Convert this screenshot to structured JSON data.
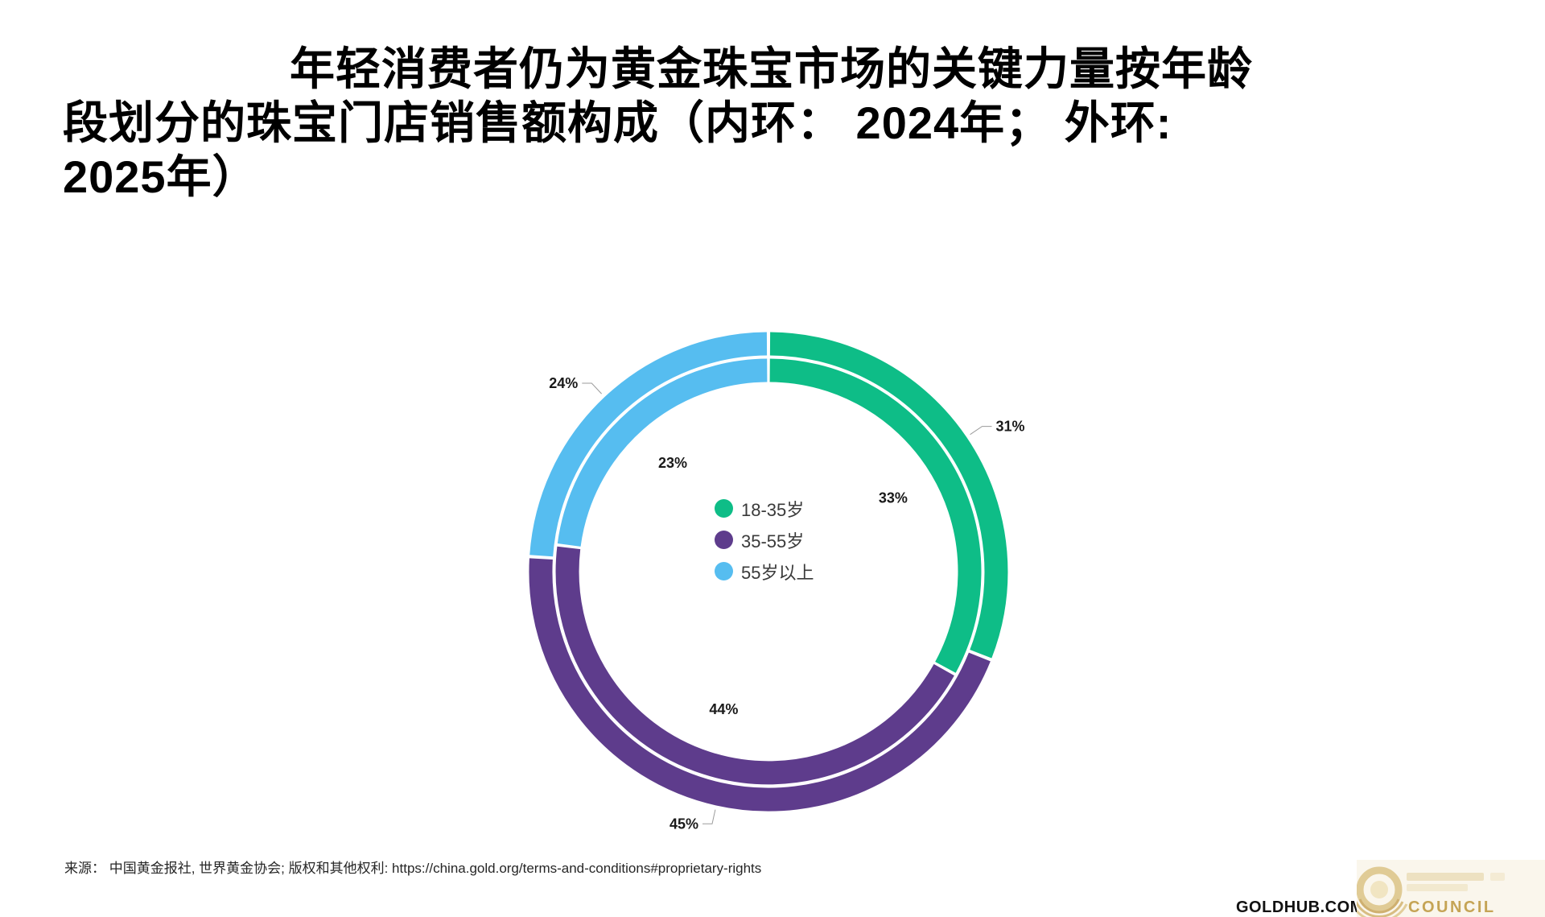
{
  "title": {
    "lines": [
      "年轻消费者仍为黄金珠宝市场的关键力量按年龄",
      "段划分的珠宝门店销售额构成（内环： 2024年； 外环:",
      "2025年）"
    ]
  },
  "chart_data": {
    "type": "donut",
    "subtype": "double-ring",
    "categories": [
      "18-35岁",
      "35-55岁",
      "55岁以上"
    ],
    "colors": [
      "#0ebd87",
      "#5e3c8c",
      "#56bdf0"
    ],
    "rings": [
      {
        "name": "2024年",
        "position": "inner",
        "values": [
          33,
          44,
          23
        ]
      },
      {
        "name": "2025年",
        "position": "outer",
        "values": [
          31,
          45,
          24
        ]
      }
    ],
    "unit": "%",
    "start_angle_deg": 0,
    "direction": "clockwise",
    "legend_position": "center-of-donut"
  },
  "legend": {
    "items": [
      {
        "label": "18-35岁",
        "color": "#0ebd87"
      },
      {
        "label": "35-55岁",
        "color": "#5e3c8c"
      },
      {
        "label": "55岁以上",
        "color": "#56bdf0"
      }
    ]
  },
  "source": {
    "text": "来源： 中国黄金报社, 世界黄金协会; 版权和其他权利: https://china.gold.org/terms-and-conditions#proprietary-rights"
  },
  "footer": {
    "goldhub": "GOLDHUB.COM",
    "council": "COUNCIL"
  }
}
